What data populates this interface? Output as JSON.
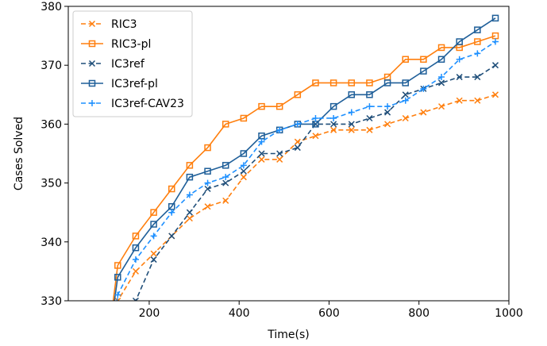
{
  "chart_data": {
    "type": "line",
    "xlabel": "Time(s)",
    "ylabel": "Cases Solved",
    "xlim": [
      20,
      1000
    ],
    "ylim": [
      330,
      380
    ],
    "xticks": [
      200,
      400,
      600,
      800,
      1000
    ],
    "yticks": [
      330,
      340,
      350,
      360,
      370,
      380
    ],
    "x": [
      130,
      170,
      210,
      250,
      290,
      330,
      370,
      410,
      450,
      490,
      530,
      570,
      610,
      650,
      690,
      730,
      770,
      810,
      850,
      890,
      930,
      970
    ],
    "legend_position": "top-left",
    "series": [
      {
        "name": "RIC3",
        "color": "#ff7f0e",
        "linestyle": "dashed",
        "marker": "x",
        "x": [
          110,
          130,
          170,
          210,
          250,
          290,
          330,
          370,
          410,
          450,
          490,
          530,
          570,
          610,
          650,
          690,
          730,
          770,
          810,
          850,
          890,
          930,
          970
        ],
        "values": [
          322,
          330,
          335,
          338,
          341,
          344,
          346,
          347,
          351,
          354,
          354,
          357,
          358,
          359,
          359,
          359,
          360,
          361,
          362,
          363,
          364,
          364,
          365
        ]
      },
      {
        "name": "RIC3-pl",
        "color": "#ff7f0e",
        "linestyle": "solid",
        "marker": "square",
        "x": [
          110,
          130,
          170,
          210,
          250,
          290,
          330,
          370,
          410,
          450,
          490,
          530,
          570,
          610,
          650,
          690,
          730,
          770,
          810,
          850,
          890,
          930,
          970
        ],
        "values": [
          324,
          336,
          341,
          345,
          349,
          353,
          356,
          360,
          361,
          363,
          363,
          365,
          367,
          367,
          367,
          367,
          368,
          371,
          371,
          373,
          373,
          374,
          375
        ]
      },
      {
        "name": "IC3ref",
        "color": "#1f4e79",
        "linestyle": "dashed",
        "marker": "x",
        "x": [
          150,
          170,
          210,
          250,
          290,
          330,
          370,
          410,
          450,
          490,
          530,
          570,
          610,
          650,
          690,
          730,
          770,
          810,
          850,
          890,
          930,
          970
        ],
        "values": [
          322,
          330,
          337,
          341,
          345,
          349,
          350,
          352,
          355,
          355,
          356,
          360,
          360,
          360,
          361,
          362,
          365,
          366,
          367,
          368,
          368,
          370
        ]
      },
      {
        "name": "IC3ref-pl",
        "color": "#1f5f99",
        "linestyle": "solid",
        "marker": "square",
        "x": [
          110,
          130,
          170,
          210,
          250,
          290,
          330,
          370,
          410,
          450,
          490,
          530,
          570,
          610,
          650,
          690,
          730,
          770,
          810,
          850,
          890,
          930,
          970
        ],
        "values": [
          323,
          334,
          339,
          343,
          346,
          351,
          352,
          353,
          355,
          358,
          359,
          360,
          360,
          363,
          365,
          365,
          367,
          367,
          369,
          371,
          374,
          376,
          378
        ]
      },
      {
        "name": "IC3ref-CAV23",
        "color": "#1e90ff",
        "linestyle": "dashed",
        "marker": "plus",
        "x": [
          115,
          130,
          170,
          210,
          250,
          290,
          330,
          370,
          410,
          450,
          490,
          530,
          570,
          610,
          650,
          690,
          730,
          770,
          810,
          850,
          890,
          930,
          970
        ],
        "values": [
          322,
          331,
          337,
          341,
          345,
          348,
          350,
          351,
          353,
          357,
          359,
          360,
          361,
          361,
          362,
          363,
          363,
          364,
          366,
          368,
          371,
          372,
          374
        ]
      }
    ]
  }
}
